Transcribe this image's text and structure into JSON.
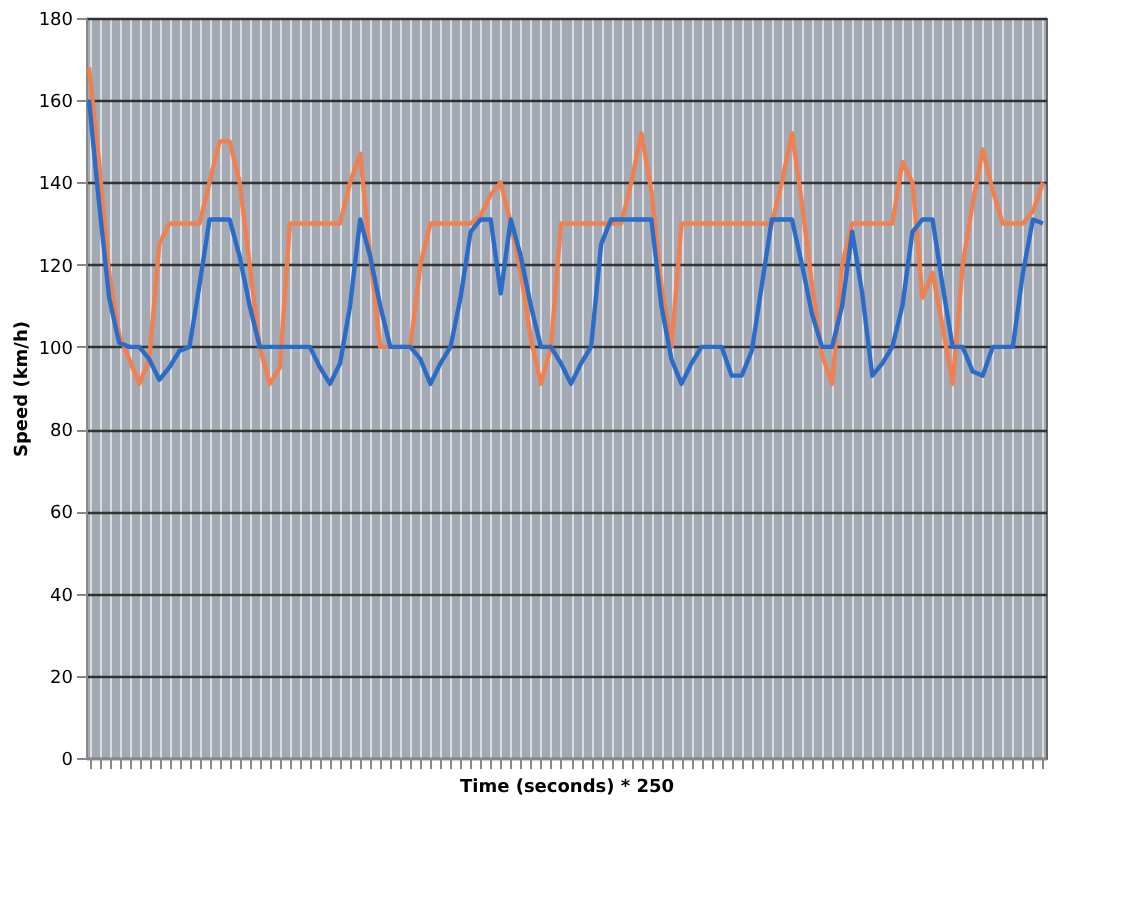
{
  "chart_data": {
    "type": "line",
    "ylabel": "Speed (km/h)",
    "xlabel": "Time (seconds) * 250",
    "categories": [
      null,
      null,
      null,
      null,
      null,
      null,
      null,
      null,
      null,
      null,
      null,
      null,
      null,
      null,
      null,
      null,
      null,
      null,
      null,
      null,
      null,
      null,
      null,
      null,
      null,
      null,
      null,
      null,
      null,
      null,
      null,
      null,
      null,
      null,
      null,
      null,
      null,
      null,
      null,
      null,
      null,
      null,
      null,
      null,
      null,
      null,
      null,
      null,
      null,
      null,
      null,
      null,
      null,
      null,
      null,
      null,
      null,
      null,
      null,
      null,
      null,
      null,
      null,
      null,
      null,
      null,
      null,
      null,
      null,
      null,
      null,
      null,
      null,
      null,
      null,
      null,
      null,
      null,
      null,
      null,
      null,
      null,
      null,
      null,
      null,
      null,
      null,
      null,
      null,
      null,
      null,
      null,
      null,
      null,
      null,
      null
    ],
    "series": [
      {
        "color": "#f08050",
        "values": [
          168,
          145,
          118,
          103,
          97,
          91,
          97,
          125,
          130,
          130,
          130,
          130,
          140,
          150,
          150,
          140,
          120,
          100,
          91,
          95,
          130,
          130,
          130,
          130,
          130,
          130,
          140,
          147,
          122,
          100,
          100,
          100,
          100,
          120,
          130,
          130,
          130,
          130,
          130,
          132,
          137,
          140,
          130,
          118,
          102,
          91,
          100,
          130,
          130,
          130,
          130,
          130,
          130,
          130,
          140,
          152,
          138,
          115,
          100,
          130,
          130,
          130,
          130,
          130,
          130,
          130,
          130,
          130,
          130,
          140,
          152,
          135,
          115,
          98,
          91,
          120,
          130,
          130,
          130,
          130,
          130,
          145,
          140,
          112,
          118,
          105,
          91,
          120,
          135,
          148,
          138,
          130,
          130,
          130,
          133,
          140
        ]
      },
      {
        "color": "#2a6cc8",
        "values": [
          160,
          135,
          112,
          101,
          100,
          100,
          97,
          92,
          95,
          99,
          100,
          115,
          131,
          131,
          131,
          122,
          110,
          100,
          100,
          100,
          100,
          100,
          100,
          95,
          91,
          96,
          110,
          131,
          122,
          110,
          100,
          100,
          100,
          97,
          91,
          96,
          100,
          112,
          128,
          131,
          131,
          113,
          131,
          122,
          110,
          100,
          100,
          96,
          91,
          96,
          100,
          125,
          131,
          131,
          131,
          131,
          131,
          110,
          97,
          91,
          96,
          100,
          100,
          100,
          93,
          93,
          99,
          115,
          131,
          131,
          131,
          120,
          108,
          100,
          100,
          110,
          128,
          113,
          93,
          96,
          100,
          110,
          128,
          131,
          131,
          115,
          100,
          100,
          94,
          93,
          100,
          100,
          100,
          118,
          131,
          130
        ]
      }
    ],
    "ylim": [
      0,
      180
    ],
    "yticks": [
      0,
      20,
      40,
      60,
      80,
      100,
      120,
      140,
      160,
      180
    ],
    "grid": true,
    "tick_labels": "y",
    "marker": "none",
    "line_style": "solid"
  }
}
